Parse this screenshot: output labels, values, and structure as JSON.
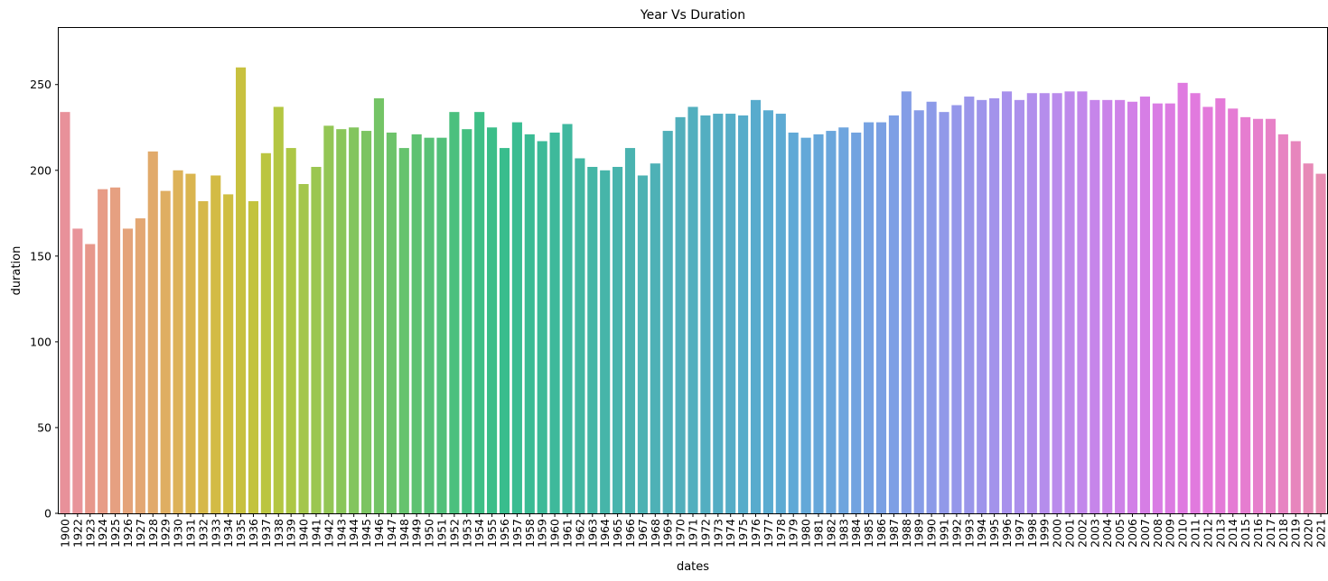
{
  "chart_data": {
    "type": "bar",
    "title": "Year Vs Duration",
    "xlabel": "dates",
    "ylabel": "duration",
    "ylim": [
      0,
      283
    ],
    "yticks": [
      0,
      50,
      100,
      150,
      200,
      250
    ],
    "grid": false,
    "categories": [
      "1900",
      "1922",
      "1923",
      "1924",
      "1925",
      "1926",
      "1927",
      "1928",
      "1929",
      "1930",
      "1931",
      "1932",
      "1933",
      "1934",
      "1935",
      "1936",
      "1937",
      "1938",
      "1939",
      "1940",
      "1941",
      "1942",
      "1943",
      "1944",
      "1945",
      "1946",
      "1947",
      "1948",
      "1949",
      "1950",
      "1951",
      "1952",
      "1953",
      "1954",
      "1955",
      "1956",
      "1957",
      "1958",
      "1959",
      "1960",
      "1961",
      "1962",
      "1963",
      "1964",
      "1965",
      "1966",
      "1967",
      "1968",
      "1969",
      "1970",
      "1971",
      "1972",
      "1973",
      "1974",
      "1975",
      "1976",
      "1977",
      "1978",
      "1979",
      "1980",
      "1981",
      "1982",
      "1983",
      "1984",
      "1985",
      "1986",
      "1987",
      "1988",
      "1989",
      "1990",
      "1991",
      "1992",
      "1993",
      "1994",
      "1995",
      "1996",
      "1997",
      "1998",
      "1999",
      "2000",
      "2001",
      "2002",
      "2003",
      "2004",
      "2005",
      "2006",
      "2007",
      "2008",
      "2009",
      "2010",
      "2011",
      "2012",
      "2013",
      "2014",
      "2015",
      "2016",
      "2017",
      "2018",
      "2019",
      "2020",
      "2021"
    ],
    "values": [
      234,
      166,
      157,
      189,
      190,
      166,
      172,
      211,
      188,
      200,
      198,
      182,
      197,
      186,
      260,
      182,
      210,
      237,
      213,
      192,
      202,
      226,
      224,
      225,
      223,
      242,
      222,
      213,
      221,
      219,
      219,
      234,
      224,
      234,
      225,
      213,
      228,
      221,
      217,
      222,
      227,
      207,
      202,
      200,
      202,
      213,
      197,
      204,
      223,
      231,
      237,
      232,
      233,
      233,
      232,
      241,
      235,
      233,
      222,
      219,
      221,
      223,
      225,
      222,
      228,
      228,
      232,
      246,
      235,
      240,
      234,
      238,
      243,
      241,
      242,
      246,
      241,
      245,
      245,
      245,
      246,
      246,
      241,
      241,
      241,
      240,
      243,
      239,
      239,
      251,
      245,
      237,
      242,
      236,
      231,
      230,
      230,
      221,
      217,
      204,
      198
    ],
    "colors": [
      "#e8919a",
      "#e8949a",
      "#e7978b",
      "#e79c87",
      "#e6a081",
      "#e4a37a",
      "#e3a773",
      "#e1aa6b",
      "#dfae62",
      "#ddb259",
      "#dab54f",
      "#d6b84a",
      "#d3bb45",
      "#cfbe41",
      "#c8c13f",
      "#c3c33e",
      "#bbc540",
      "#b4c642",
      "#adc746",
      "#a4c64c",
      "#9bc651",
      "#93c655",
      "#8ac65a",
      "#83c55e",
      "#7cc462",
      "#74c466",
      "#6dc36a",
      "#66c36e",
      "#5fc272",
      "#58c176",
      "#52c07a",
      "#4bc07e",
      "#45c082",
      "#3fbf86",
      "#3bbe89",
      "#39bd8d",
      "#39bc91",
      "#3abb94",
      "#3cba98",
      "#3eb99b",
      "#40b89f",
      "#42b7a2",
      "#44b6a6",
      "#46b5a9",
      "#48b4ad",
      "#4ab3b0",
      "#4cb2b3",
      "#4eb1b6",
      "#50b0b9",
      "#51afbc",
      "#52afbe",
      "#53aec1",
      "#54adc4",
      "#55adc7",
      "#56acca",
      "#58abcd",
      "#5aabd0",
      "#5daad3",
      "#60a9d6",
      "#63a8d8",
      "#66a7da",
      "#6aa6dc",
      "#6ea5de",
      "#72a3e0",
      "#76a2e2",
      "#7aa0e3",
      "#7e9fe5",
      "#839de6",
      "#879ce7",
      "#8c9ae8",
      "#9199e9",
      "#9597ea",
      "#9a96ea",
      "#9e94eb",
      "#a393eb",
      "#a891ec",
      "#ac90ec",
      "#b18eec",
      "#b58dec",
      "#ba8bec",
      "#be89eb",
      "#c287eb",
      "#c685ea",
      "#ca83e9",
      "#ce82e8",
      "#d280e7",
      "#d67ee5",
      "#d97ce4",
      "#dc7be2",
      "#df7ae0",
      "#e17ade",
      "#e37adb",
      "#e47ad8",
      "#e57bd4",
      "#e67dd0",
      "#e67fcc",
      "#e781c7",
      "#e784c2",
      "#e786bd",
      "#e789b7",
      "#e78db2"
    ]
  }
}
